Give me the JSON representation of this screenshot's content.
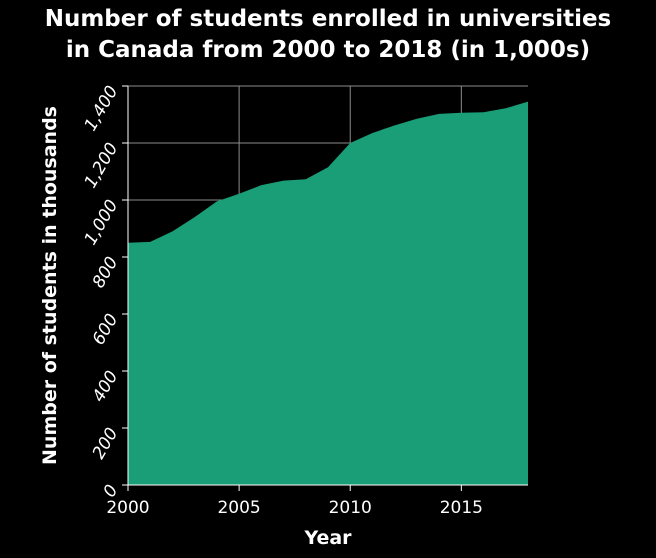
{
  "colors": {
    "background": "#000000",
    "plot_background": "#000000",
    "area_fill": "#1a9e78",
    "grid": "#8c8c8c",
    "text": "#ffffff"
  },
  "chart_data": {
    "type": "area",
    "title_lines": [
      "Number of students enrolled in universities",
      "in Canada from 2000 to 2018 (in 1,000s)"
    ],
    "xlabel": "Year",
    "ylabel": "Number of students in thousands",
    "xlim": [
      2000,
      2018
    ],
    "ylim": [
      0,
      1400
    ],
    "x_ticks": [
      2000,
      2005,
      2010,
      2015
    ],
    "x_tick_labels": [
      "2000",
      "2005",
      "2010",
      "2015"
    ],
    "y_ticks": [
      0,
      200,
      400,
      600,
      800,
      1000,
      1200,
      1400
    ],
    "y_tick_labels": [
      "0",
      "200",
      "400",
      "600",
      "800",
      "1,000",
      "1,200",
      "1,400"
    ],
    "grid": true,
    "series": [
      {
        "x": [
          2000,
          2001,
          2002,
          2003,
          2004,
          2005,
          2006,
          2007,
          2008,
          2009,
          2010,
          2011,
          2012,
          2013,
          2014,
          2015,
          2016,
          2017,
          2018
        ],
        "values": [
          850,
          853,
          890,
          940,
          995,
          1022,
          1052,
          1068,
          1073,
          1115,
          1200,
          1235,
          1262,
          1285,
          1302,
          1306,
          1308,
          1322,
          1345
        ]
      }
    ]
  }
}
